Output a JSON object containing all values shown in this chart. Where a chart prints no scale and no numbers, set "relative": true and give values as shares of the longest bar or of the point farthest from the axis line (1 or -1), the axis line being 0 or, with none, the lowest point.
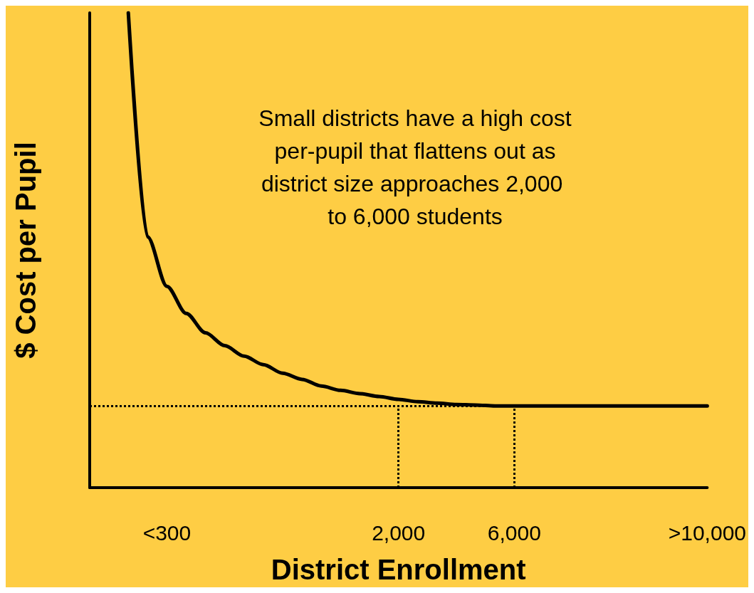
{
  "chart_data": {
    "type": "line",
    "relative": true,
    "xlabel": "District Enrollment",
    "ylabel": "$ Cost per Pupil",
    "annotations": [
      "Small districts have a high cost per-pupil that flattens out as district size approaches 2,000 to 6,000 students"
    ],
    "categories": [
      null,
      null,
      null,
      null,
      "<300",
      null,
      null,
      null,
      null,
      null,
      null,
      null,
      null,
      null,
      null,
      null,
      "2,000",
      null,
      null,
      null,
      null,
      null,
      "6,000",
      null,
      null,
      null,
      null,
      null,
      null,
      null,
      null,
      null,
      ">10,000"
    ],
    "series": [
      {
        "color": "#000000",
        "values": [
          null,
          null,
          1.0,
          0.528,
          0.424,
          0.367,
          0.326,
          0.299,
          0.277,
          0.259,
          0.241,
          0.228,
          0.214,
          0.205,
          0.198,
          0.192,
          0.186,
          0.181,
          0.178,
          0.175,
          0.174,
          0.172,
          0.172,
          0.172,
          0.172,
          0.172,
          0.172,
          0.172,
          0.172,
          0.172,
          0.172,
          0.172,
          0.172
        ]
      }
    ],
    "ref_lines": [
      {
        "axis": "y",
        "value": 0.172,
        "line_style": "dotted",
        "color": "#000000"
      },
      {
        "axis": "x",
        "value": "2,000",
        "line_style": "dotted",
        "color": "#000000"
      },
      {
        "axis": "x",
        "value": "6,000",
        "line_style": "dotted",
        "color": "#000000"
      }
    ],
    "marker": "none",
    "line_style": "solid",
    "grid": false
  }
}
